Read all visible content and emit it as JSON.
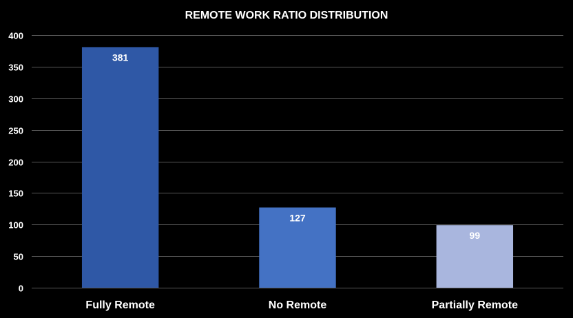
{
  "chart_data": {
    "type": "bar",
    "title": "REMOTE WORK RATIO DISTRIBUTION",
    "xlabel": "",
    "ylabel": "",
    "categories": [
      "Fully Remote",
      "No Remote",
      "Partially Remote"
    ],
    "values": [
      381,
      127,
      99
    ],
    "data_labels": [
      "381",
      "127",
      "99"
    ],
    "bar_colors": [
      "#2F58A6",
      "#4472C4",
      "#A9B6DE"
    ],
    "ylim": [
      0,
      400
    ],
    "yticks": [
      0,
      50,
      100,
      150,
      200,
      250,
      300,
      350,
      400
    ],
    "grid": true,
    "legend": "none"
  },
  "colors": {
    "background": "#000000",
    "text": "#FFFFFF",
    "gridline": "#595959"
  }
}
